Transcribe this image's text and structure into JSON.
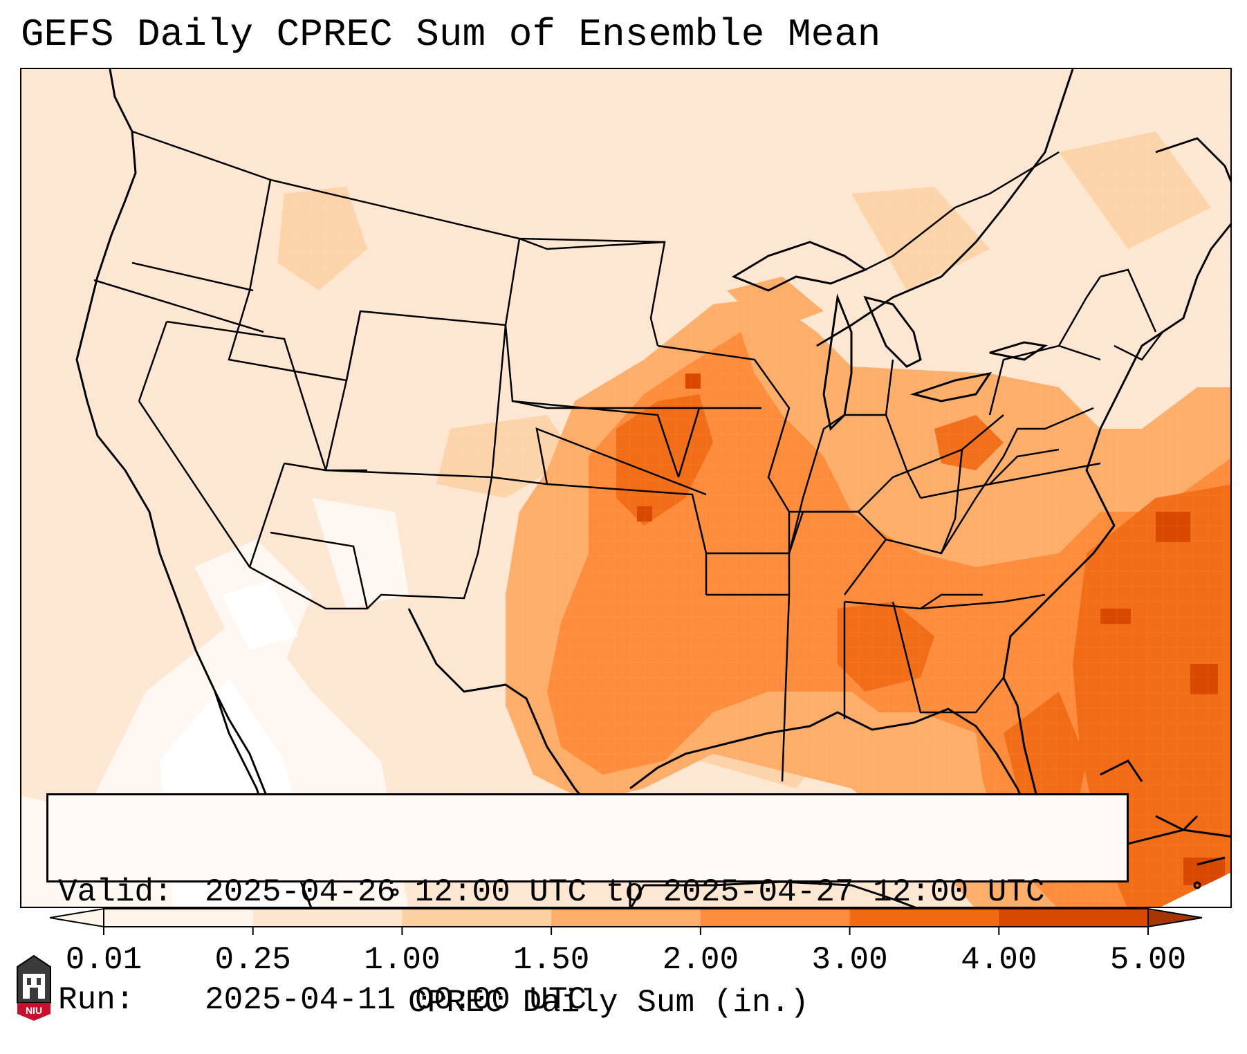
{
  "title": "GEFS Daily CPREC Sum of Ensemble Mean",
  "info_box": {
    "valid_label": "Valid:",
    "valid_value": "2025-04-26 12:00 UTC to 2025-04-27 12:00 UTC",
    "run_label": "Run:",
    "run_value": "2025-04-11 00:00 UTC"
  },
  "colorbar": {
    "label": "CPREC Daily Sum (in.)",
    "ticks": [
      "0.01",
      "0.25",
      "1.00",
      "1.50",
      "2.00",
      "3.00",
      "4.00",
      "5.00"
    ],
    "colors": [
      "#fff5eb",
      "#fee6ce",
      "#fdd0a2",
      "#fdae6b",
      "#fd8d3c",
      "#f16913",
      "#d94801",
      "#a63603"
    ],
    "extend": "both"
  },
  "map": {
    "region": "Contiguous United States",
    "basemap": "state boundaries and coastlines"
  },
  "logo": {
    "text": "NIU"
  }
}
